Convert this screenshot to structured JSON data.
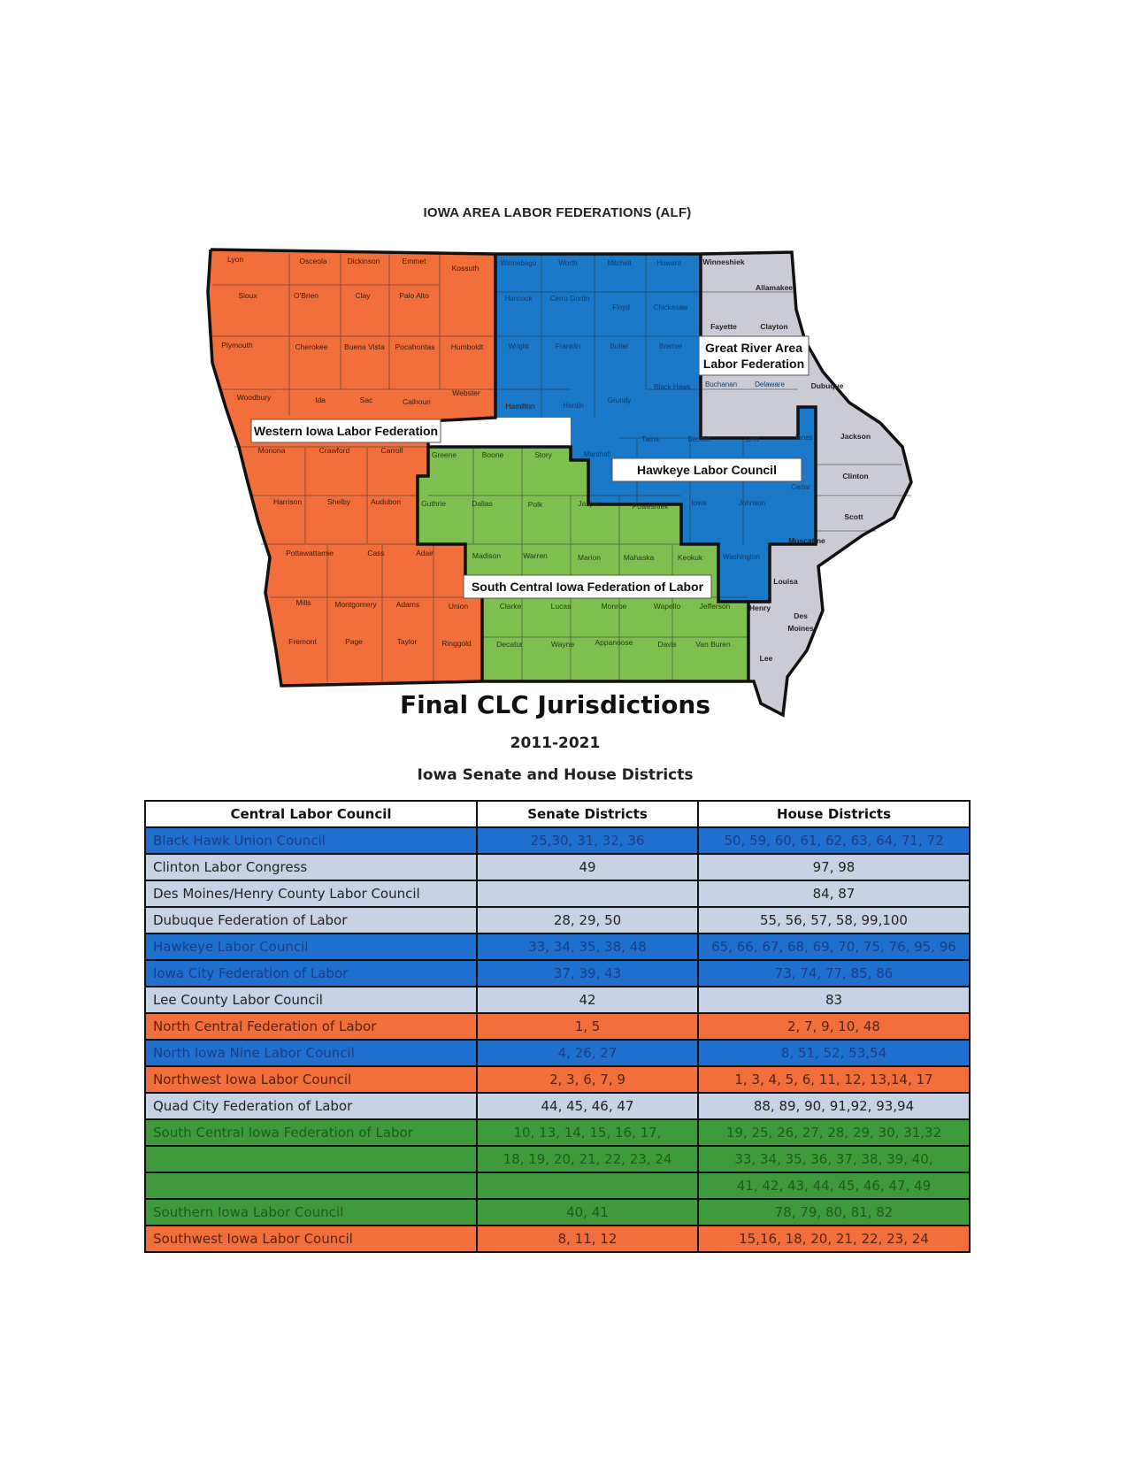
{
  "map": {
    "title": "IOWA AREA LABOR FEDERATIONS (ALF)",
    "colors": {
      "orange": "#f26e3b",
      "blue": "#1a78c8",
      "green": "#7fbf4f",
      "gray": "#cbcbd6"
    },
    "region_labels": {
      "western": "Western Iowa Labor Federation",
      "hawkeye": "Hawkeye Labor Council",
      "south_central": "South Central Iowa Federation of Labor",
      "great_river_line1": "Great River Area",
      "great_river_line2": "Labor Federation"
    },
    "counties": {
      "lyon": "Lyon",
      "osceola": "Osceola",
      "dickinson": "Dickinson",
      "emmet": "Emmet",
      "kossuth": "Kossuth",
      "sioux": "Sioux",
      "obrien": "O'Brien",
      "clay": "Clay",
      "palo_alto": "Palo Alto",
      "plymouth": "Plymouth",
      "cherokee": "Cherokee",
      "buena_vista": "Buena Vista",
      "pocahontas": "Pocahontas",
      "humboldt": "Humboldt",
      "woodbury": "Woodbury",
      "ida": "Ida",
      "sac": "Sac",
      "calhoun": "Calhoun",
      "webster": "Webster",
      "monona": "Monona",
      "crawford": "Crawford",
      "carroll": "Carroll",
      "harrison": "Harrison",
      "shelby": "Shelby",
      "audubon": "Audubon",
      "pottawattamie": "Pottawattamie",
      "cass": "Cass",
      "adair": "Adair",
      "mills": "Mills",
      "montgomery": "Montgomery",
      "adams": "Adams",
      "union": "Union",
      "fremont": "Fremont",
      "page": "Page",
      "taylor": "Taylor",
      "ringgold": "Ringgold",
      "winnebago": "Winnebago",
      "worth": "Worth",
      "mitchell": "Mitchell",
      "howard": "Howard",
      "hancock": "Hancock",
      "cerro_gordo": "Cerro Gordo",
      "floyd": "Floyd",
      "chickasaw": "Chickasaw",
      "wright": "Wright",
      "franklin": "Franklin",
      "butler": "Butler",
      "bremer": "Bremer",
      "black_hawk": "Black Hawk",
      "buchanan": "Buchanan",
      "delaware": "Delaware",
      "hamilton": "Hamilton",
      "hardin": "Hardin",
      "grundy": "Grundy",
      "tama": "Tama",
      "benton": "Benton",
      "linn": "Linn",
      "jones": "Jones",
      "marshall": "Marshall",
      "cedar": "Cedar",
      "iowa": "Iowa",
      "johnson": "Johnson",
      "washington": "Washington",
      "greene": "Greene",
      "boone": "Boone",
      "story": "Story",
      "guthrie": "Guthrie",
      "dallas": "Dallas",
      "polk": "Polk",
      "jasper": "Jasper",
      "poweshiek": "Poweshiek",
      "madison": "Madison",
      "warren": "Warren",
      "marion": "Marion",
      "mahaska": "Mahaska",
      "keokuk": "Keokuk",
      "clarke": "Clarke",
      "lucas": "Lucas",
      "monroe": "Monroe",
      "wapello": "Wapello",
      "jefferson": "Jefferson",
      "decatur": "Decatur",
      "wayne": "Wayne",
      "appanoose": "Appanoose",
      "davis": "Davis",
      "van_buren": "Van Buren",
      "winneshiek": "Winneshiek",
      "allamakee": "Allamakee",
      "fayette": "Fayette",
      "clayton": "Clayton",
      "dubuque": "Dubuque",
      "jackson": "Jackson",
      "clinton": "Clinton",
      "scott": "Scott",
      "muscatine": "Muscatine",
      "louisa": "Louisa",
      "henry": "Henry",
      "des_moines_1": "Des",
      "des_moines_2": "Moines",
      "lee": "Lee"
    }
  },
  "heading": "Final CLC Jurisdictions",
  "years": "2011-2021",
  "subtitle": "Iowa Senate and House Districts",
  "table": {
    "headers": [
      "Central Labor Council",
      "Senate Districts",
      "House Districts"
    ],
    "row_colors": {
      "blue": "#1f6fcf",
      "gray": "#c7d2e4",
      "orange": "#f26e3b",
      "green": "#3f9a3c"
    },
    "rows": [
      {
        "c": "Black Hawk Union Council",
        "s": "25,30, 31, 32, 36",
        "h": "50, 59, 60, 61, 62, 63, 64, 71, 72",
        "color": "blue"
      },
      {
        "c": "Clinton Labor Congress",
        "s": "49",
        "h": "97, 98",
        "color": "gray"
      },
      {
        "c": "Des Moines/Henry County Labor Council",
        "s": "",
        "h": "84, 87",
        "color": "gray"
      },
      {
        "c": "Dubuque Federation of Labor",
        "s": "28, 29, 50",
        "h": "55, 56, 57, 58, 99,100",
        "color": "gray"
      },
      {
        "c": "Hawkeye Labor Council",
        "s": "33, 34, 35, 38, 48",
        "h": "65, 66, 67, 68, 69, 70, 75, 76, 95, 96",
        "color": "blue"
      },
      {
        "c": "Iowa City Federation of Labor",
        "s": "37, 39, 43",
        "h": "73, 74, 77, 85, 86",
        "color": "blue"
      },
      {
        "c": "Lee County Labor Council",
        "s": "42",
        "h": "83",
        "color": "gray"
      },
      {
        "c": "North Central Federation of Labor",
        "s": "1, 5",
        "h": "2, 7, 9, 10, 48",
        "color": "orange"
      },
      {
        "c": "North Iowa Nine Labor Council",
        "s": "4, 26, 27",
        "h": "8, 51, 52, 53,54",
        "color": "blue"
      },
      {
        "c": "Northwest Iowa Labor Council",
        "s": "2, 3, 6, 7, 9",
        "h": "1, 3, 4, 5, 6, 11, 12, 13,14, 17",
        "color": "orange"
      },
      {
        "c": "Quad City Federation of Labor",
        "s": "44, 45, 46, 47",
        "h": "88, 89, 90, 91,92, 93,94",
        "color": "gray"
      },
      {
        "c": "South Central Iowa Federation of Labor",
        "s": "10, 13, 14, 15, 16, 17,",
        "h": "19, 25, 26, 27, 28, 29, 30, 31,32",
        "color": "green"
      },
      {
        "c": "",
        "s": "18, 19, 20, 21, 22, 23, 24",
        "h": "33, 34, 35, 36, 37, 38, 39, 40,",
        "color": "green"
      },
      {
        "c": "",
        "s": "",
        "h": "41, 42, 43, 44, 45, 46, 47, 49",
        "color": "green"
      },
      {
        "c": "Southern Iowa Labor Council",
        "s": "40, 41",
        "h": "78, 79, 80, 81, 82",
        "color": "green"
      },
      {
        "c": "Southwest Iowa Labor Council",
        "s": "8, 11, 12",
        "h": "15,16, 18, 20, 21, 22, 23, 24",
        "color": "orange"
      }
    ]
  }
}
